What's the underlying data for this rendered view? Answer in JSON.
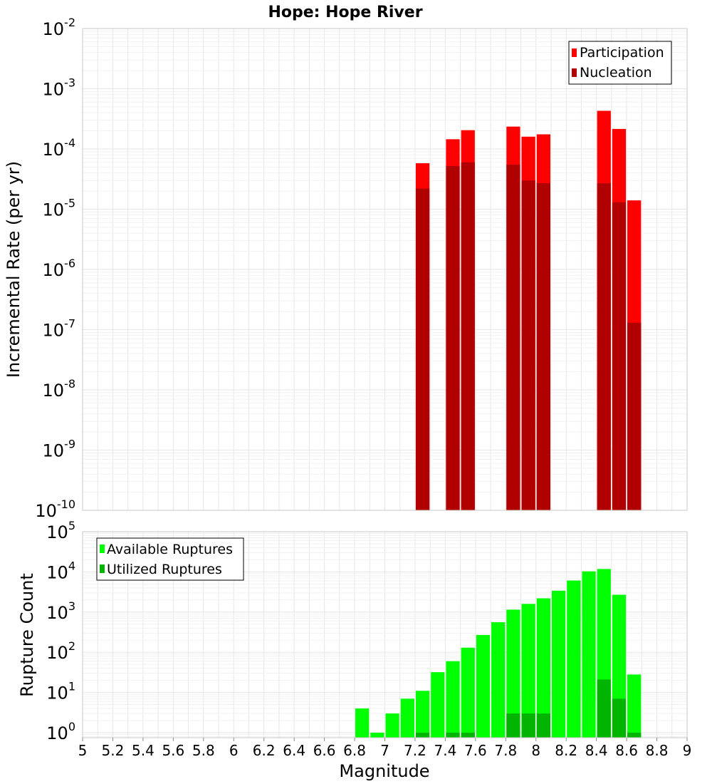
{
  "title": "Hope: Hope River",
  "xlabel": "Magnitude",
  "x_tick_labels": [
    "5",
    "5.2",
    "5.4",
    "5.6",
    "5.8",
    "6",
    "6.2",
    "6.4",
    "6.6",
    "6.8",
    "7",
    "7.2",
    "7.4",
    "7.6",
    "7.8",
    "8",
    "8.2",
    "8.4",
    "8.6",
    "8.8",
    "9"
  ],
  "colors": {
    "participation": "#ff0000",
    "nucleation": "#b00000",
    "available": "#00ff00",
    "utilized": "#00b400"
  },
  "chart_data": [
    {
      "type": "bar",
      "ylabel": "Incremental Rate (per yr)",
      "yscale": "log",
      "xlim": [
        5,
        9
      ],
      "ylim": [
        1e-10,
        0.01
      ],
      "y_tick_labels": [
        {
          "base": "10",
          "exp": "-10"
        },
        {
          "base": "10",
          "exp": "-9"
        },
        {
          "base": "10",
          "exp": "-8"
        },
        {
          "base": "10",
          "exp": "-7"
        },
        {
          "base": "10",
          "exp": "-6"
        },
        {
          "base": "10",
          "exp": "-5"
        },
        {
          "base": "10",
          "exp": "-4"
        },
        {
          "base": "10",
          "exp": "-3"
        },
        {
          "base": "10",
          "exp": "-2"
        }
      ],
      "legend": {
        "position": "top-right"
      },
      "grid": true,
      "series": [
        {
          "name": "Participation",
          "x": [
            7.25,
            7.45,
            7.55,
            7.85,
            7.95,
            8.05,
            8.45,
            8.55,
            8.65
          ],
          "values": [
            5.8e-05,
            0.000145,
            0.000205,
            0.000235,
            0.00016,
            0.000175,
            0.00043,
            0.000215,
            1.4e-05
          ]
        },
        {
          "name": "Nucleation",
          "x": [
            7.25,
            7.45,
            7.55,
            7.85,
            7.95,
            8.05,
            8.45,
            8.55,
            8.65
          ],
          "values": [
            2.2e-05,
            5.2e-05,
            6e-05,
            5.5e-05,
            3e-05,
            2.7e-05,
            2.7e-05,
            1.3e-05,
            1.3e-07
          ]
        }
      ]
    },
    {
      "type": "bar",
      "ylabel": "Rupture Count",
      "yscale": "log",
      "xlim": [
        5,
        9
      ],
      "ylim": [
        0.75,
        100000
      ],
      "y_tick_labels": [
        {
          "base": "10",
          "exp": "0"
        },
        {
          "base": "10",
          "exp": "1"
        },
        {
          "base": "10",
          "exp": "2"
        },
        {
          "base": "10",
          "exp": "3"
        },
        {
          "base": "10",
          "exp": "4"
        },
        {
          "base": "10",
          "exp": "5"
        }
      ],
      "legend": {
        "position": "top-left"
      },
      "grid": true,
      "series": [
        {
          "name": "Available Ruptures",
          "x": [
            6.85,
            6.95,
            7.05,
            7.15,
            7.25,
            7.35,
            7.45,
            7.55,
            7.65,
            7.75,
            7.85,
            7.95,
            8.05,
            8.15,
            8.25,
            8.35,
            8.45,
            8.55,
            8.65
          ],
          "values": [
            4,
            1,
            3,
            7,
            11,
            32,
            60,
            130,
            270,
            560,
            1150,
            1600,
            2200,
            3400,
            6100,
            10300,
            11800,
            2700,
            28
          ]
        },
        {
          "name": "Utilized Ruptures",
          "x": [
            7.25,
            7.45,
            7.55,
            7.85,
            7.95,
            8.05,
            8.45,
            8.55,
            8.65
          ],
          "values": [
            1,
            1,
            1,
            3,
            3,
            3,
            21,
            7,
            1
          ]
        }
      ]
    }
  ]
}
